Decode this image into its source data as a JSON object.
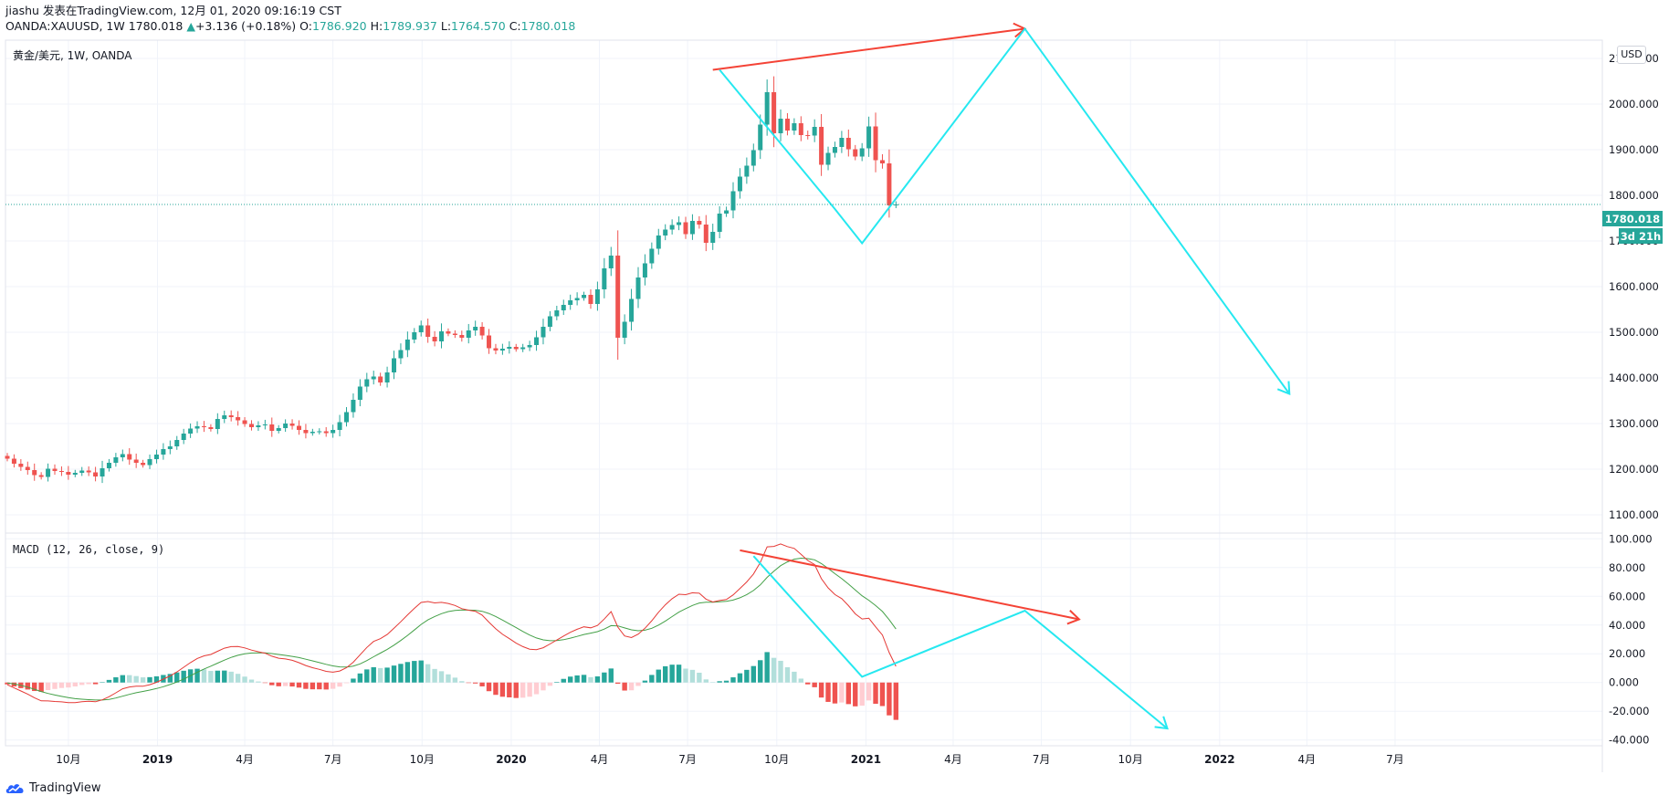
{
  "header": {
    "line1": "jiashu 发表在TradingView.com, 12月 01, 2020 09:16:19 CST",
    "symbol": "OANDA:XAUUSD, 1W",
    "last": "1780.018",
    "change": "+3.136 (+0.18%)",
    "o_label": "O:",
    "o": "1786.920",
    "h_label": "H:",
    "h": "1789.937",
    "l_label": "L:",
    "l": "1764.570",
    "c_label": "C:",
    "c": "1780.018"
  },
  "pane_label": "黄金/美元, 1W, OANDA",
  "currency_button": "USD",
  "macd_label": "MACD (12, 26, close, 9)",
  "price_badge": "1780.018",
  "time_badge": "3d 21h",
  "logo_text": "TradingView",
  "colors": {
    "up": "#26a69a",
    "down": "#ef5350",
    "hist_up_strong": "#26a69a",
    "hist_up_weak": "#b2dfdb",
    "hist_down_strong": "#ef5350",
    "hist_down_weak": "#ffcdd2",
    "macd_line": "#e53935",
    "signal_line": "#43a047",
    "annot_red": "#f44336",
    "annot_cyan": "#26e8f0"
  },
  "chart_data": {
    "type": "candlestick",
    "title": "黄金/美元, 1W, OANDA",
    "x_ticks": [
      "10月",
      "2019",
      "4月",
      "7月",
      "10月",
      "2020",
      "4月",
      "7月",
      "10月",
      "2021",
      "4月",
      "7月",
      "10月",
      "2022",
      "4月",
      "7月"
    ],
    "price_axis": {
      "ylim": [
        1060,
        2140
      ],
      "ticks": [
        "1100.000",
        "1200.000",
        "1300.000",
        "1400.000",
        "1500.000",
        "1600.000",
        "1700.000",
        "1800.000",
        "1900.000",
        "2000.000",
        "2100.000"
      ]
    },
    "macd_axis": {
      "ylim": [
        -44,
        104
      ],
      "ticks": [
        "-40.000",
        "-20.000",
        "0.000",
        "20.000",
        "40.000",
        "60.000",
        "80.000",
        "100.000"
      ]
    },
    "first_week": "2018-07-30",
    "closes": [
      1223,
      1212,
      1205,
      1198,
      1187,
      1183,
      1201,
      1196,
      1194,
      1188,
      1192,
      1197,
      1193,
      1184,
      1202,
      1214,
      1226,
      1233,
      1221,
      1214,
      1209,
      1222,
      1232,
      1244,
      1250,
      1264,
      1278,
      1289,
      1294,
      1292,
      1288,
      1310,
      1318,
      1314,
      1307,
      1299,
      1292,
      1296,
      1298,
      1284,
      1290,
      1300,
      1295,
      1286,
      1279,
      1282,
      1283,
      1279,
      1286,
      1303,
      1325,
      1352,
      1381,
      1397,
      1403,
      1390,
      1412,
      1443,
      1461,
      1484,
      1500,
      1515,
      1490,
      1480,
      1502,
      1497,
      1494,
      1488,
      1504,
      1512,
      1493,
      1465,
      1460,
      1464,
      1468,
      1463,
      1467,
      1472,
      1489,
      1512,
      1535,
      1548,
      1560,
      1570,
      1575,
      1582,
      1562,
      1594,
      1640,
      1668,
      1488,
      1523,
      1573,
      1620,
      1651,
      1683,
      1712,
      1725,
      1735,
      1741,
      1715,
      1744,
      1736,
      1696,
      1720,
      1760,
      1767,
      1809,
      1841,
      1865,
      1899,
      1955,
      2026,
      1936,
      1968,
      1942,
      1958,
      1932,
      1931,
      1950,
      1867,
      1893,
      1906,
      1926,
      1901,
      1885,
      1903,
      1951,
      1877,
      1870,
      1778,
      1780
    ],
    "annotations": [
      {
        "kind": "arrow",
        "color": "red",
        "pane": "price",
        "from": "2020-07-27/2075",
        "to": "2021-06-14/2165"
      },
      {
        "kind": "polyline",
        "color": "cyan",
        "pane": "price",
        "points": [
          "2020-08-03/2075",
          "2020-11-30/1770",
          "2020-12-28/1695",
          "2021-06-14/2165",
          "2022-03-14/1365"
        ]
      },
      {
        "kind": "arrow",
        "color": "red",
        "pane": "macd",
        "from": "2020-08-24/92",
        "to": "2021-08-09/44"
      },
      {
        "kind": "polyline",
        "color": "cyan",
        "pane": "macd",
        "points": [
          "2020-09-07/88",
          "2020-12-28/4",
          "2021-06-14/50",
          "2021-11-08/-32"
        ]
      }
    ]
  }
}
